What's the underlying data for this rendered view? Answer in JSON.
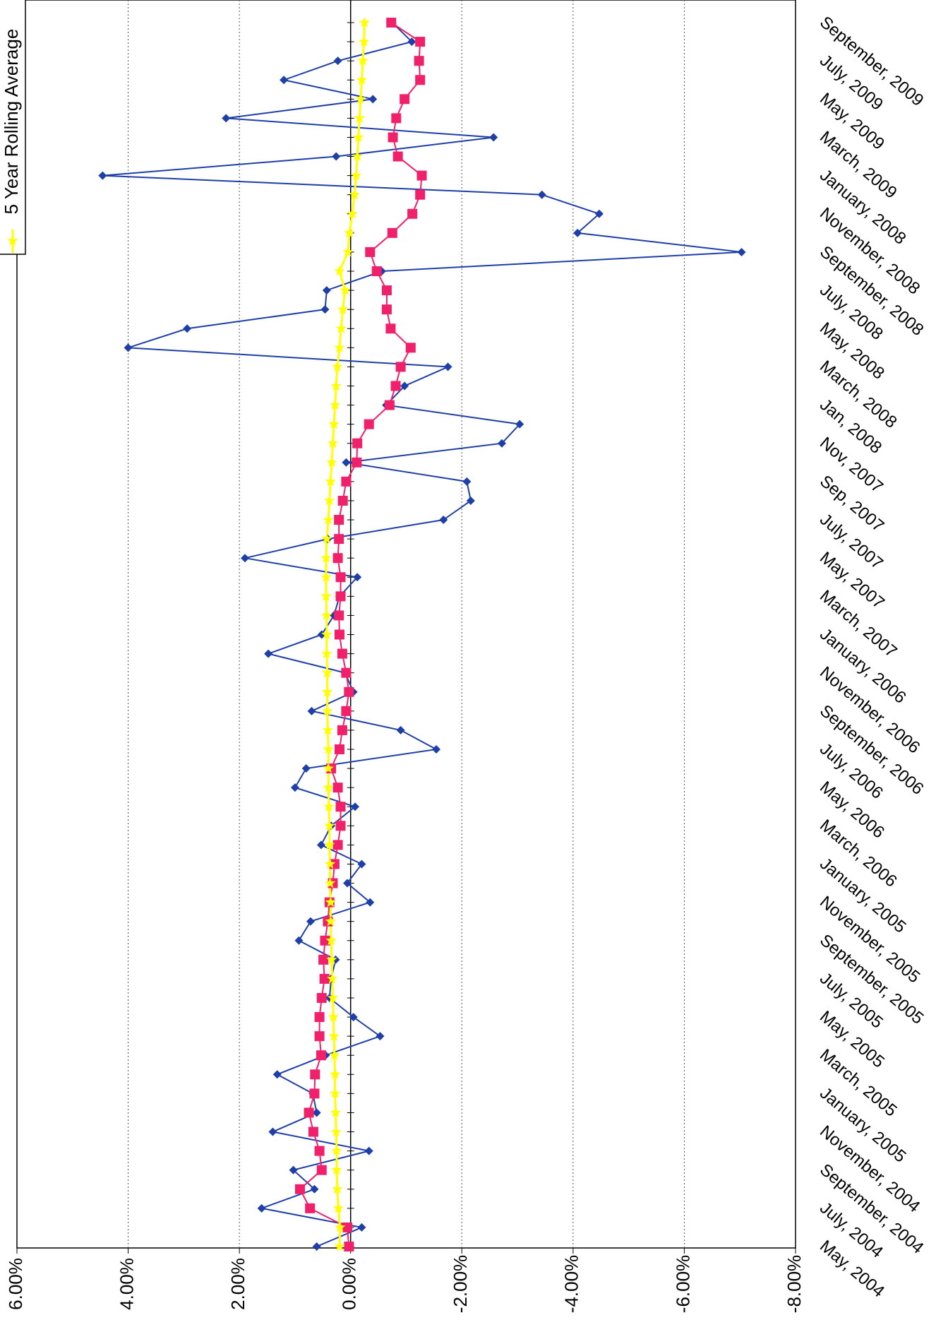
{
  "chart_data": {
    "type": "line",
    "categories": [
      "May, 2004",
      null,
      "July, 2004",
      null,
      "September, 2004",
      null,
      "November, 2004",
      null,
      "January, 2005",
      null,
      "March, 2005",
      null,
      "May, 2005",
      null,
      "July, 2005",
      null,
      "September, 2005",
      null,
      "November, 2005",
      null,
      "January, 2005",
      null,
      "March, 2006",
      null,
      "May, 2006",
      null,
      "July, 2006",
      null,
      "September, 2006",
      null,
      "November, 2006",
      null,
      "January, 2006",
      null,
      "March, 2007",
      null,
      "May, 2007",
      null,
      "July, 2007",
      null,
      "Sep, 2007",
      null,
      "Nov, 2007",
      null,
      "Jan, 2008",
      null,
      "March, 2008",
      null,
      "May, 2008",
      null,
      "July, 2008",
      null,
      "September, 2008",
      null,
      "November, 2008",
      null,
      "January, 2008",
      null,
      "March, 2009",
      null,
      "May, 2009",
      null,
      "July, 2009",
      null,
      "September, 2009"
    ],
    "series": [
      {
        "color": "#1f3fa8",
        "marker": "diamond",
        "values": [
          0.61,
          -0.2,
          1.6,
          0.65,
          1.03,
          -0.33,
          1.4,
          0.61,
          0.68,
          1.32,
          0.45,
          -0.53,
          -0.05,
          0.38,
          0.35,
          0.27,
          0.93,
          0.72,
          -0.35,
          0.06,
          -0.2,
          0.53,
          0.35,
          -0.08,
          1.0,
          0.8,
          -1.54,
          -0.9,
          0.7,
          -0.05,
          0.1,
          1.48,
          0.52,
          0.3,
          0.2,
          -0.12,
          1.9,
          0.41,
          -1.67,
          -2.16,
          -2.09,
          0.08,
          -2.72,
          -3.04,
          -0.64,
          -0.97,
          -1.75,
          4.0,
          2.94,
          0.46,
          0.43,
          -0.56,
          -7.03,
          -4.08,
          -4.47,
          -3.44,
          4.46,
          0.26,
          -2.57,
          2.24,
          -0.4,
          1.2,
          0.23,
          -1.1,
          -0.75
        ]
      },
      {
        "color": "#f0206a",
        "marker": "square",
        "values": [
          0.03,
          0.06,
          0.73,
          0.91,
          0.52,
          0.56,
          0.67,
          0.75,
          0.65,
          0.64,
          0.53,
          0.56,
          0.56,
          0.52,
          0.47,
          0.49,
          0.46,
          0.41,
          0.38,
          0.32,
          0.29,
          0.23,
          0.18,
          0.18,
          0.23,
          0.35,
          0.2,
          0.15,
          0.08,
          0.03,
          0.08,
          0.15,
          0.2,
          0.21,
          0.18,
          0.18,
          0.23,
          0.21,
          0.21,
          0.14,
          0.08,
          -0.11,
          -0.12,
          -0.33,
          -0.7,
          -0.81,
          -0.9,
          -1.08,
          -0.72,
          -0.65,
          -0.65,
          -0.47,
          -0.35,
          -0.75,
          -1.11,
          -1.25,
          -1.28,
          -0.85,
          -0.76,
          -0.82,
          -0.97,
          -1.25,
          -1.23,
          -1.25,
          -0.73
        ]
      },
      {
        "name": "5 Year Rolling Average",
        "color": "#ffff00",
        "marker": "star",
        "values": [
          0.2,
          0.19,
          0.22,
          0.24,
          0.25,
          0.25,
          0.26,
          0.27,
          0.28,
          0.28,
          0.29,
          0.3,
          0.31,
          0.32,
          0.33,
          0.34,
          0.35,
          0.36,
          0.36,
          0.37,
          0.37,
          0.38,
          0.38,
          0.39,
          0.4,
          0.4,
          0.4,
          0.41,
          0.42,
          0.42,
          0.42,
          0.43,
          0.43,
          0.43,
          0.44,
          0.44,
          0.44,
          0.43,
          0.4,
          0.38,
          0.36,
          0.34,
          0.32,
          0.3,
          0.28,
          0.26,
          0.24,
          0.2,
          0.17,
          0.14,
          0.1,
          0.2,
          0.05,
          0.02,
          -0.03,
          -0.07,
          -0.1,
          -0.12,
          -0.14,
          -0.16,
          -0.18,
          -0.2,
          -0.22,
          -0.24,
          -0.25
        ]
      }
    ],
    "ylim": [
      -8,
      6
    ],
    "yticks": [
      {
        "value": 6,
        "label": "6.00%"
      },
      {
        "value": 4,
        "label": "4.00%"
      },
      {
        "value": 2,
        "label": "2.00%"
      },
      {
        "value": 0,
        "label": "0.00%"
      },
      {
        "value": -2,
        "label": "-2.00%"
      },
      {
        "value": -4,
        "label": "-4.00%"
      },
      {
        "value": -6,
        "label": "-6.00%"
      },
      {
        "value": -8,
        "label": "-8.00%"
      }
    ],
    "grid": true,
    "legend": "top-left"
  }
}
